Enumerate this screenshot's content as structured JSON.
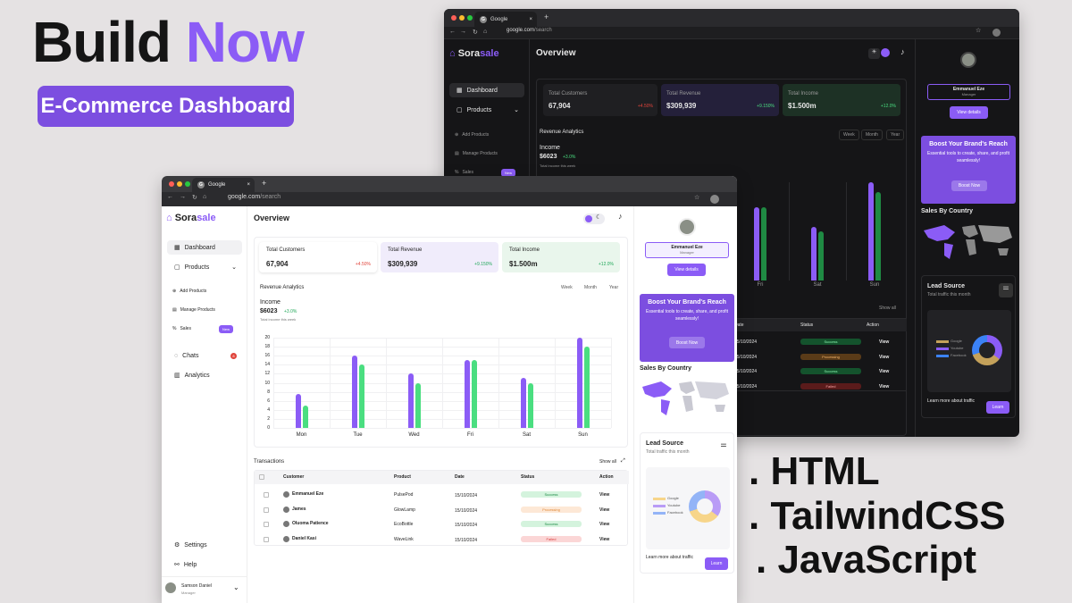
{
  "promo": {
    "title_a": "Build ",
    "title_b": "Now",
    "badge": "E-Commerce Dashboard",
    "tech": [
      ". HTML",
      ". TailwindCSS",
      ". JavaScript"
    ]
  },
  "colors": {
    "accent": "#8b5cf6",
    "green": "#22a85a",
    "red": "#e0443b",
    "dark_bg": "#151517"
  },
  "browser": {
    "tab_title": "Google",
    "url_host": "google.com",
    "url_path": "/search",
    "new_tab": "+"
  },
  "brand": {
    "a": "Sora",
    "b": "sale"
  },
  "nav": {
    "dashboard": "Dashboard",
    "products": "Products",
    "add_products": "Add Products",
    "manage_products": "Manage Products",
    "sales": "Sales",
    "new_badge": "New",
    "chats": "Chats",
    "chats_badge": "8",
    "analytics": "Analytics",
    "settings": "Settings",
    "help": "Help"
  },
  "user": {
    "name": "Samson Daniel",
    "role": "Manager"
  },
  "overview": {
    "title": "Overview"
  },
  "stats": [
    {
      "label": "Total Customers",
      "value": "67,904",
      "change": "+4.50%"
    },
    {
      "label": "Total Revenue",
      "value": "$309,939",
      "change": "+9.150%"
    },
    {
      "label": "Total Income",
      "value": "$1.500m",
      "change": "+12.0%"
    }
  ],
  "revenue": {
    "title": "Revenue Analytics",
    "week": "Week",
    "month": "Month",
    "year": "Year",
    "income_label": "Income",
    "income_value": "$6023",
    "income_change": "+3.0%",
    "income_note": "Total income this week"
  },
  "chart_data": {
    "type": "bar",
    "categories": [
      "Mon",
      "Tue",
      "Wed",
      "Fri",
      "Sat",
      "Sun"
    ],
    "series": [
      {
        "values": [
          7.5,
          16,
          12,
          15,
          11,
          20
        ],
        "color": "#8b5cf6"
      },
      {
        "values": [
          5,
          14,
          10,
          15,
          10,
          18
        ],
        "color": "#4ade80"
      }
    ],
    "ylim": [
      0,
      20
    ],
    "yticks": [
      "20",
      "18",
      "16",
      "14",
      "12",
      "10",
      "8",
      "6",
      "4",
      "2",
      "0"
    ],
    "grid": true
  },
  "transactions": {
    "title": "Transactions",
    "show_all": "Show all",
    "headers": [
      "Customer",
      "Product",
      "Date",
      "Status",
      "Action"
    ],
    "rows": [
      {
        "customer": "Emmanuel Eze",
        "product": "PulsePod",
        "date": "15/10/2024",
        "status": "Success",
        "action": "View"
      },
      {
        "customer": "James",
        "product": "GlowLamp",
        "date": "15/10/2024",
        "status": "Processing",
        "action": "View"
      },
      {
        "customer": "Oluoma Patience",
        "product": "EcoBottle",
        "date": "15/10/2024",
        "status": "Success",
        "action": "View"
      },
      {
        "customer": "Daniel Kasi",
        "product": "WaveLink",
        "date": "15/10/2024",
        "status": "Failed",
        "action": "View"
      }
    ]
  },
  "profile": {
    "name": "Emmanuel Eze",
    "role": "Manager",
    "button": "View details"
  },
  "boost": {
    "title": "Boost Your Brand's Reach",
    "text": "Essential tools to create, share, and profit seamlessly!",
    "button": "Boost Now"
  },
  "sales_country": {
    "title": "Sales By Country"
  },
  "lead": {
    "title": "Lead Source",
    "subtitle": "Total traffic this month",
    "legend": [
      "Google",
      "Youtube",
      "Facebook"
    ],
    "learn_text": "Learn more about traffic",
    "learn_button": "Learn"
  },
  "dark": {
    "bar_labels": [
      "Fri",
      "Sat",
      "Sun"
    ],
    "y_top": "20",
    "table_headers": [
      "Date",
      "Status",
      "Action"
    ],
    "show_all": "Show all",
    "rows": [
      {
        "date": "15/10/2024",
        "status": "Success",
        "action": "View"
      },
      {
        "date": "15/10/2024",
        "status": "Processing",
        "action": "View"
      },
      {
        "date": "15/10/2024",
        "status": "Success",
        "action": "View"
      },
      {
        "date": "15/10/2024",
        "status": "Failed",
        "action": "View"
      }
    ]
  }
}
